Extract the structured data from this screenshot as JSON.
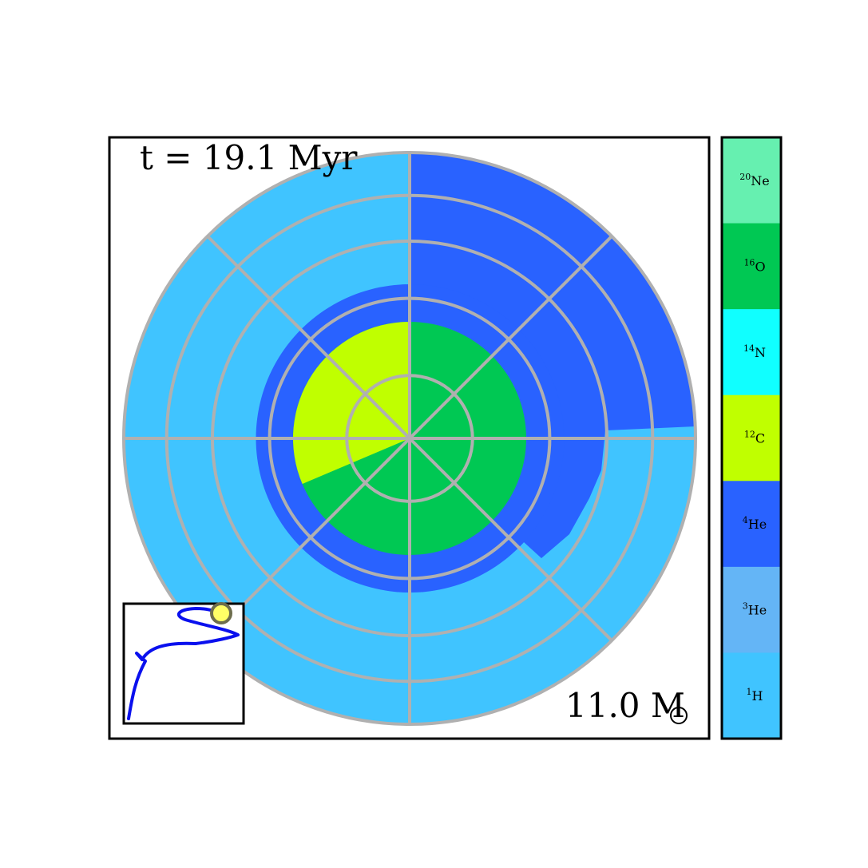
{
  "chart_data": {
    "type": "polar-composition",
    "time_label": "t = 19.1 Myr",
    "mass_label": "11.0 M",
    "colors": {
      "20Ne": "#66f0b0",
      "16O": "#00c853",
      "14N": "#10ffff",
      "12C": "#c0ff00",
      "4He": "#2962ff",
      "3He": "#64b5f6",
      "1H": "#40c4ff",
      "grid": "#b0b0b0",
      "track": "#0000ee",
      "marker": "#ffff66"
    },
    "legend": [
      {
        "key": "20Ne",
        "mass": "20",
        "el": "Ne"
      },
      {
        "key": "16O",
        "mass": "16",
        "el": "O"
      },
      {
        "key": "14N",
        "mass": "14",
        "el": "N"
      },
      {
        "key": "12C",
        "mass": "12",
        "el": "C"
      },
      {
        "key": "4He",
        "mass": "4",
        "el": "He"
      },
      {
        "key": "3He",
        "mass": "3",
        "el": "He"
      },
      {
        "key": "1H",
        "mass": "1",
        "el": "H"
      }
    ],
    "grid": {
      "ring_fractions": [
        0.22,
        0.49,
        0.69,
        0.85
      ],
      "spokes_deg": [
        0,
        45,
        90,
        135,
        180,
        225,
        270,
        315
      ]
    },
    "hr_track": "S-shaped evolutionary track, current point at upper right"
  }
}
